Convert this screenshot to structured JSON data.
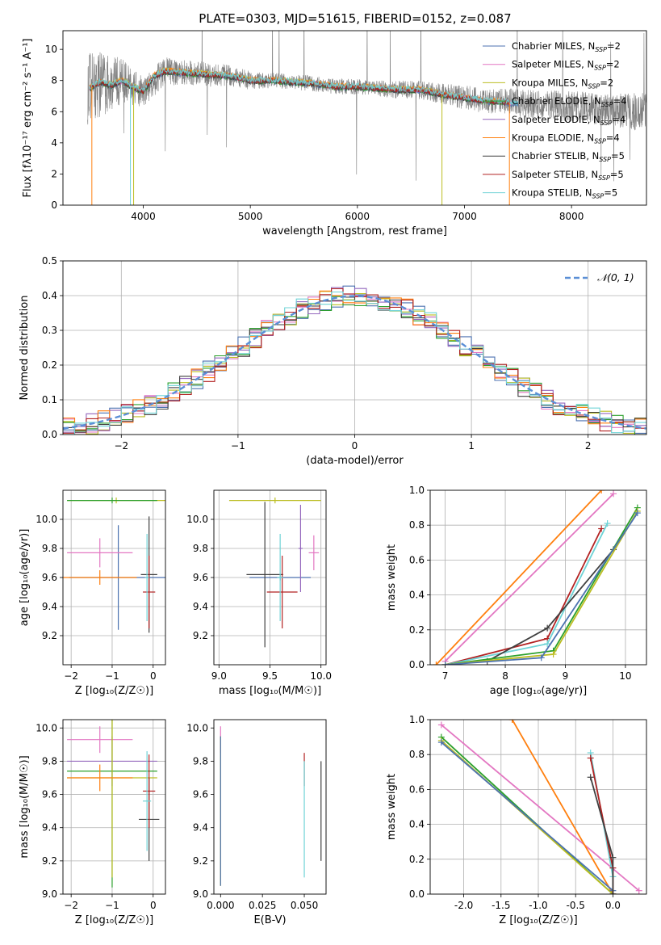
{
  "figure_title": "PLATE=0303, MJD=51615, FIBERID=0152, z=0.087",
  "colors": {
    "chabrier_miles": "#4c72b0",
    "salpeter_miles": "#e377c2",
    "kroupa_miles": "#bcbd22",
    "chabrier_elodie": "#2ca02c",
    "salpeter_elodie": "#9467bd",
    "kroupa_elodie": "#ff7f0e",
    "chabrier_stelib": "#404040",
    "salpeter_stelib": "#b22222",
    "kroupa_stelib": "#6fd3d6",
    "data": "#808080",
    "normal": "#5b8fd6"
  },
  "chart_data": [
    {
      "id": "spectrum",
      "type": "line",
      "title": "PLATE=0303, MJD=51615, FIBERID=0152, z=0.087",
      "xlabel": "wavelength [Angstrom, rest frame]",
      "ylabel": "Flux [fλ10⁻¹⁷ erg cm⁻² s⁻¹ A⁻¹]",
      "xlim": [
        3250,
        8700
      ],
      "ylim": [
        0,
        11.2
      ],
      "xticks": [
        4000,
        5000,
        6000,
        7000,
        8000
      ],
      "yticks": [
        0,
        2,
        4,
        6,
        8,
        10
      ],
      "grid": false,
      "legend": "top-right",
      "legend_entries": [
        "Chabrier MILES, N_SSP=2",
        "Salpeter MILES, N_SSP=2",
        "Kroupa MILES, N_SSP=2",
        "Chabrier ELODIE, N_SSP=4",
        "Salpeter ELODIE, N_SSP=4",
        "Kroupa ELODIE, N_SSP=4",
        "Chabrier STELIB, N_SSP=5",
        "Salpeter STELIB, N_SSP=5",
        "Kroupa STELIB, N_SSP=5"
      ],
      "model_continuum": {
        "x": [
          3500,
          3600,
          3700,
          3800,
          3900,
          4000,
          4100,
          4200,
          4400,
          4600,
          4800,
          5000,
          5200,
          5400,
          5600,
          5800,
          6000,
          6200,
          6400,
          6600,
          6800,
          7000,
          7200,
          7400,
          7500
        ],
        "y": [
          7.5,
          7.9,
          7.7,
          8.0,
          7.6,
          7.3,
          8.3,
          8.6,
          8.5,
          8.4,
          8.3,
          8.0,
          8.0,
          7.9,
          7.8,
          7.6,
          7.6,
          7.5,
          7.4,
          7.4,
          7.1,
          6.9,
          6.7,
          6.6,
          6.5
        ]
      },
      "data_envelope": {
        "x": [
          3500,
          3600,
          3700,
          3800,
          3900,
          4000,
          4200,
          4400,
          4600,
          4800,
          5000,
          5200,
          5400,
          5600,
          5800,
          6000,
          6200,
          6400,
          6600,
          6800,
          7000,
          7200,
          7400,
          7600,
          7800,
          8000,
          8200,
          8400,
          8600,
          8700
        ],
        "y": [
          7.5,
          7.9,
          7.8,
          8.0,
          7.6,
          7.3,
          8.6,
          8.5,
          8.4,
          8.3,
          8.0,
          8.0,
          7.9,
          7.8,
          7.6,
          7.6,
          7.5,
          7.4,
          7.4,
          7.1,
          6.9,
          6.7,
          6.6,
          6.5,
          6.4,
          6.3,
          6.2,
          6.1,
          6.0,
          6.0
        ],
        "noise": [
          2.5,
          2.2,
          1.8,
          1.5,
          1.2,
          1.0,
          0.9,
          0.8,
          0.8,
          0.7,
          0.6,
          0.5,
          0.5,
          0.5,
          0.5,
          0.5,
          0.5,
          0.6,
          0.6,
          0.7,
          0.8,
          0.8,
          0.9,
          0.9,
          1.0,
          1.0,
          1.1,
          1.1,
          1.2,
          1.2
        ]
      }
    },
    {
      "id": "residuals",
      "type": "bar",
      "xlabel": "(data-model)/error",
      "ylabel": "Normed distribution",
      "xlim": [
        -2.5,
        2.5
      ],
      "ylim": [
        0,
        0.5
      ],
      "xticks": [
        -2,
        -1,
        0,
        1,
        2
      ],
      "yticks": [
        0,
        0.1,
        0.2,
        0.3,
        0.4,
        0.5
      ],
      "grid": true,
      "legend": "top-right",
      "legend_entries": [
        "𝒩(0, 1)"
      ],
      "bin_width": 0.1
    },
    {
      "id": "age-vs-Z",
      "type": "scatter",
      "xlabel": "Z [log₁₀(Z/Z☉)]",
      "ylabel": "age  [log₁₀(age/yr)]",
      "xlim": [
        -2.2,
        0.3
      ],
      "ylim": [
        9.0,
        10.2
      ],
      "xticks": [
        -2,
        -1,
        0
      ],
      "yticks": [
        9.2,
        9.4,
        9.6,
        9.8,
        10.0
      ],
      "grid": true,
      "points": [
        {
          "series": "chabrier_miles",
          "x": -0.85,
          "y": 9.6,
          "xerr": 1.2,
          "yerr": 0.36
        },
        {
          "series": "salpeter_miles",
          "x": -1.3,
          "y": 9.77,
          "xerr": 0.8,
          "yerr": 0.1
        },
        {
          "series": "kroupa_miles",
          "x": -0.9,
          "y": 10.13,
          "xerr": 1.2,
          "yerr": 0.02
        },
        {
          "series": "chabrier_elodie",
          "x": -1.0,
          "y": 10.13,
          "xerr": 1.1,
          "yerr": 0.02
        },
        {
          "series": "kroupa_elodie",
          "x": -1.3,
          "y": 9.6,
          "xerr": 0.9,
          "yerr": 0.05
        },
        {
          "series": "chabrier_stelib",
          "x": -0.1,
          "y": 9.62,
          "xerr": 0.2,
          "yerr": 0.4
        },
        {
          "series": "salpeter_stelib",
          "x": -0.1,
          "y": 9.5,
          "xerr": 0.15,
          "yerr": 0.25
        },
        {
          "series": "kroupa_stelib",
          "x": -0.15,
          "y": 9.6,
          "xerr": 0.05,
          "yerr": 0.3
        }
      ]
    },
    {
      "id": "age-vs-mass",
      "type": "scatter",
      "xlabel": "mass [log₁₀(M/M☉)]",
      "ylabel": "",
      "xlim": [
        8.95,
        10.05
      ],
      "ylim": [
        9.0,
        10.2
      ],
      "xticks": [
        9.0,
        9.5,
        10.0
      ],
      "yticks": [
        9.2,
        9.4,
        9.6,
        9.8,
        10.0
      ],
      "grid": true,
      "points": [
        {
          "series": "chabrier_miles",
          "x": 9.6,
          "y": 9.6,
          "xerr": 0.3,
          "yerr": 0.02
        },
        {
          "series": "salpeter_miles",
          "x": 9.93,
          "y": 9.77,
          "xerr": 0.05,
          "yerr": 0.12
        },
        {
          "series": "kroupa_miles",
          "x": 9.55,
          "y": 10.13,
          "xerr": 0.45,
          "yerr": 0.02
        },
        {
          "series": "salpeter_elodie",
          "x": 9.8,
          "y": 9.8,
          "xerr": 0.02,
          "yerr": 0.3
        },
        {
          "series": "chabrier_stelib",
          "x": 9.45,
          "y": 9.62,
          "xerr": 0.18,
          "yerr": 0.5
        },
        {
          "series": "salpeter_stelib",
          "x": 9.62,
          "y": 9.5,
          "xerr": 0.15,
          "yerr": 0.25
        },
        {
          "series": "kroupa_stelib",
          "x": 9.6,
          "y": 9.6,
          "xerr": 0.03,
          "yerr": 0.3
        }
      ]
    },
    {
      "id": "weight-vs-age",
      "type": "line",
      "xlabel": "age  [log₁₀(age/yr)]",
      "ylabel": "mass weight",
      "xlim": [
        6.75,
        10.35
      ],
      "ylim": [
        0,
        1.0
      ],
      "xticks": [
        7,
        8,
        9,
        10
      ],
      "yticks": [
        0,
        0.2,
        0.4,
        0.6,
        0.8,
        1.0
      ],
      "grid": true,
      "series": [
        {
          "key": "kroupa_elodie",
          "x": [
            6.85,
            9.6
          ],
          "y": [
            0.0,
            1.0
          ]
        },
        {
          "key": "salpeter_miles",
          "x": [
            7.0,
            9.8
          ],
          "y": [
            0.02,
            0.98
          ]
        },
        {
          "key": "salpeter_stelib",
          "x": [
            7.0,
            8.7,
            9.6
          ],
          "y": [
            0.0,
            0.15,
            0.78
          ]
        },
        {
          "key": "kroupa_stelib",
          "x": [
            7.0,
            8.7,
            9.7
          ],
          "y": [
            0.0,
            0.12,
            0.81
          ]
        },
        {
          "key": "chabrier_stelib",
          "x": [
            7.7,
            8.7,
            9.8
          ],
          "y": [
            0.02,
            0.21,
            0.66
          ]
        },
        {
          "key": "chabrier_elodie",
          "x": [
            7.0,
            8.8,
            10.2
          ],
          "y": [
            0.0,
            0.08,
            0.9
          ]
        },
        {
          "key": "kroupa_miles",
          "x": [
            7.0,
            8.8,
            10.2
          ],
          "y": [
            0.0,
            0.06,
            0.88
          ]
        },
        {
          "key": "chabrier_miles",
          "x": [
            7.0,
            8.6,
            10.2
          ],
          "y": [
            0.0,
            0.04,
            0.87
          ]
        }
      ]
    },
    {
      "id": "mass-vs-Z",
      "type": "scatter",
      "xlabel": "Z [log₁₀(Z/Z☉)]",
      "ylabel": "mass [log₁₀(M/M☉)]",
      "xlim": [
        -2.2,
        0.3
      ],
      "ylim": [
        9.0,
        10.05
      ],
      "xticks": [
        -2,
        -1,
        0
      ],
      "yticks": [
        9.0,
        9.2,
        9.4,
        9.6,
        9.8,
        10.0
      ],
      "grid": true,
      "points": [
        {
          "series": "salpeter_miles",
          "x": -1.3,
          "y": 9.93,
          "xerr": 0.8,
          "yerr": 0.08
        },
        {
          "series": "salpeter_elodie",
          "x": -1.0,
          "y": 9.8,
          "xerr": 1.1,
          "yerr": 0.15
        },
        {
          "series": "chabrier_elodie",
          "x": -1.0,
          "y": 9.74,
          "xerr": 1.1,
          "yerr": 0.7
        },
        {
          "series": "kroupa_miles",
          "x": -1.0,
          "y": 9.7,
          "xerr": 1.1,
          "yerr": 0.6
        },
        {
          "series": "kroupa_elodie",
          "x": -1.3,
          "y": 9.7,
          "xerr": 0.8,
          "yerr": 0.08
        },
        {
          "series": "chabrier_stelib",
          "x": -0.1,
          "y": 9.45,
          "xerr": 0.25,
          "yerr": 0.25
        },
        {
          "series": "salpeter_stelib",
          "x": -0.1,
          "y": 9.62,
          "xerr": 0.15,
          "yerr": 0.22
        },
        {
          "series": "kroupa_stelib",
          "x": -0.15,
          "y": 9.56,
          "xerr": 0.1,
          "yerr": 0.3
        }
      ]
    },
    {
      "id": "mass-vs-EBV",
      "type": "scatter",
      "xlabel": "E(B-V)",
      "ylabel": "",
      "xlim": [
        -0.004,
        0.063
      ],
      "ylim": [
        9.0,
        10.05
      ],
      "xticks": [
        0.0,
        0.025,
        0.05
      ],
      "yticks": [
        9.0,
        9.2,
        9.4,
        9.6,
        9.8,
        10.0
      ],
      "grid": false,
      "points": [
        {
          "series": "salpeter_miles",
          "x": 0.0,
          "y": 9.93,
          "xerr": 0.0,
          "yerr": 0.08
        },
        {
          "series": "kroupa_miles",
          "x": 0.0,
          "y": 9.5,
          "xerr": 0.0,
          "yerr": 0.45
        },
        {
          "series": "chabrier_miles",
          "x": 0.0,
          "y": 9.5,
          "xerr": 0.0,
          "yerr": 0.45
        },
        {
          "series": "salpeter_stelib",
          "x": 0.05,
          "y": 9.75,
          "xerr": 0.0,
          "yerr": 0.1
        },
        {
          "series": "kroupa_stelib",
          "x": 0.05,
          "y": 9.45,
          "xerr": 0.0,
          "yerr": 0.35
        },
        {
          "series": "chabrier_stelib",
          "x": 0.06,
          "y": 9.5,
          "xerr": 0.0,
          "yerr": 0.3
        }
      ]
    },
    {
      "id": "weight-vs-Z",
      "type": "line",
      "xlabel": "Z [log₁₀(Z/Z☉)]",
      "ylabel": "mass weight",
      "xlim": [
        -2.45,
        0.45
      ],
      "ylim": [
        0,
        1.0
      ],
      "xticks": [
        -2.0,
        -1.5,
        -1.0,
        -0.5,
        0.0
      ],
      "yticks": [
        0,
        0.2,
        0.4,
        0.6,
        0.8,
        1.0
      ],
      "grid": true,
      "series": [
        {
          "key": "salpeter_miles",
          "x": [
            -2.3,
            0.35
          ],
          "y": [
            0.97,
            0.02
          ]
        },
        {
          "key": "kroupa_elodie",
          "x": [
            -1.35,
            0.0
          ],
          "y": [
            1.0,
            0.0
          ]
        },
        {
          "key": "chabrier_elodie",
          "x": [
            -2.3,
            0.0
          ],
          "y": [
            0.9,
            0.0
          ]
        },
        {
          "key": "kroupa_miles",
          "x": [
            -2.3,
            0.0
          ],
          "y": [
            0.88,
            0.0
          ]
        },
        {
          "key": "chabrier_miles",
          "x": [
            -2.3,
            0.0
          ],
          "y": [
            0.87,
            0.02
          ]
        },
        {
          "key": "kroupa_stelib",
          "x": [
            -0.3,
            0.0,
            0.0
          ],
          "y": [
            0.81,
            0.1,
            0.0
          ]
        },
        {
          "key": "salpeter_stelib",
          "x": [
            -0.3,
            0.0,
            0.0
          ],
          "y": [
            0.78,
            0.15,
            0.0
          ]
        },
        {
          "key": "chabrier_stelib",
          "x": [
            -0.3,
            0.0,
            0.0
          ],
          "y": [
            0.67,
            0.21,
            0.0
          ]
        }
      ]
    }
  ]
}
